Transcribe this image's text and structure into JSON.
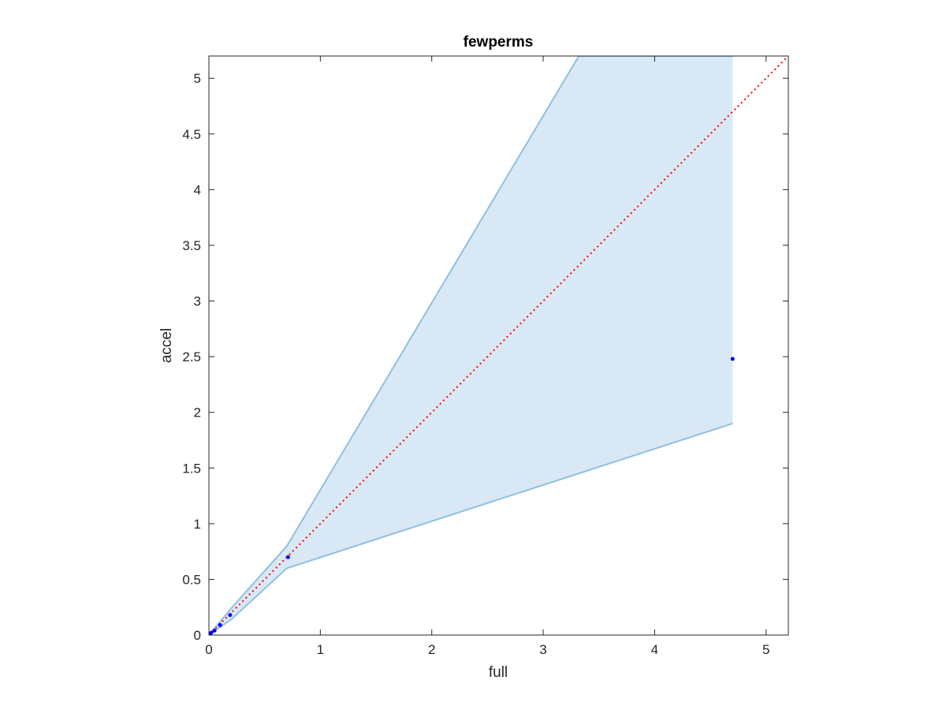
{
  "chart_data": {
    "type": "area",
    "title": "fewperms",
    "xlabel": "full",
    "ylabel": "accel",
    "xlim": [
      0,
      5.2
    ],
    "ylim": [
      0,
      5.2
    ],
    "xticks": [
      "0",
      "1",
      "2",
      "3",
      "4",
      "5"
    ],
    "yticks": [
      "0",
      "0.5",
      "1",
      "1.5",
      "2",
      "2.5",
      "3",
      "3.5",
      "4",
      "4.5",
      "5"
    ],
    "grid": false,
    "band": {
      "upper": [
        [
          0,
          0
        ],
        [
          0.1,
          0.12
        ],
        [
          0.2,
          0.24
        ],
        [
          0.7,
          0.8
        ],
        [
          3.32,
          5.2
        ],
        [
          4.7,
          5.2
        ]
      ],
      "lower": [
        [
          0,
          0
        ],
        [
          0.1,
          0.07
        ],
        [
          0.2,
          0.14
        ],
        [
          0.7,
          0.6
        ],
        [
          4.7,
          1.9
        ]
      ],
      "fill_color": "#d9e8f5",
      "edge_color": "#8ec0e1"
    },
    "points": {
      "x": [
        0,
        0.02,
        0.05,
        0.1,
        0.19,
        0.71,
        4.7
      ],
      "y": [
        0,
        0.02,
        0.04,
        0.09,
        0.18,
        0.7,
        2.48
      ],
      "color": "#0000ff"
    },
    "reference_line": {
      "from": [
        0,
        0
      ],
      "to": [
        5.2,
        5.2
      ],
      "color": "#ff0000",
      "style": "dotted"
    }
  }
}
